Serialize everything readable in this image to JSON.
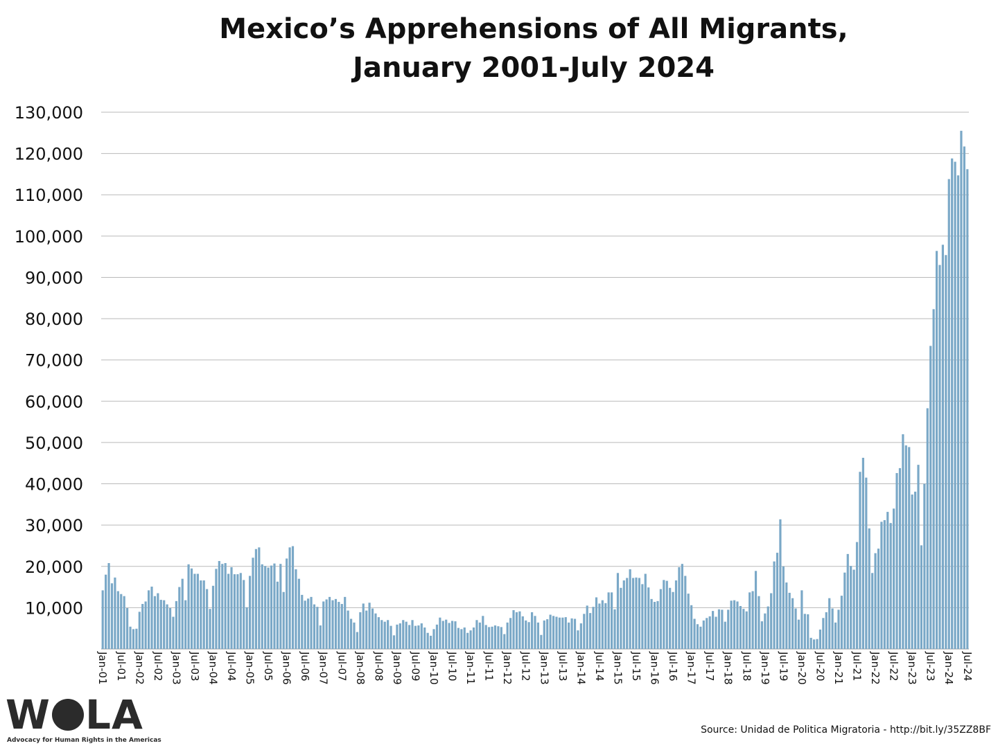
{
  "chart_data": {
    "type": "bar",
    "title": [
      "Mexico’s Apprehensions of All Migrants,",
      "January 2001-July 2024"
    ],
    "xlabel": "",
    "ylabel": "",
    "ylim": [
      0,
      130000
    ],
    "y_ticks": [
      "10,000",
      "20,000",
      "30,000",
      "40,000",
      "50,000",
      "60,000",
      "70,000",
      "80,000",
      "90,000",
      "100,000",
      "110,000",
      "120,000",
      "130,000"
    ],
    "y_tick_values": [
      10000,
      20000,
      30000,
      40000,
      50000,
      60000,
      70000,
      80000,
      90000,
      100000,
      110000,
      120000,
      130000
    ],
    "x_tick_labels": [
      "Jan-01",
      "Jul-01",
      "Jan-02",
      "Jul-02",
      "Jan-03",
      "Jul-03",
      "Jan-04",
      "Jul-04",
      "Jan-05",
      "Jul-05",
      "Jan-06",
      "Jul-06",
      "Jan-07",
      "Jul-07",
      "Jan-08",
      "Jul-08",
      "Jan-09",
      "Jul-09",
      "Jan-10",
      "Jul-10",
      "Jan-11",
      "Jul-11",
      "Jan-12",
      "Jul-12",
      "Jan-13",
      "Jul-13",
      "Jan-14",
      "Jul-14",
      "Jan-15",
      "Jul-15",
      "Jan-16",
      "Jul-16",
      "Jan-17",
      "Jul-17",
      "Jan-18",
      "Jul-18",
      "Jan-19",
      "Jul-19",
      "Jan-20",
      "Jul-20",
      "Jan-21",
      "Jul-21",
      "Jan-22",
      "Jul-22",
      "Jan-23",
      "Jul-23",
      "Jan-24",
      "Jul-24"
    ],
    "bar_color": "#7aa8c7",
    "grid": true,
    "legend": "none",
    "series": [
      {
        "values": [
          14200,
          18000,
          20800,
          15900,
          17300,
          14000,
          13300,
          12800,
          9900,
          5400,
          4800,
          4900,
          9000,
          10900,
          11500,
          14200,
          15100,
          12800,
          13500,
          11900,
          11800,
          10800,
          9900,
          7800,
          11600,
          15000,
          17000,
          11800,
          20500,
          19500,
          18200,
          18200,
          16600,
          16600,
          14500,
          9700,
          15300,
          19400,
          21300,
          20600,
          20800,
          18200,
          19800,
          18100,
          18100,
          18400,
          16700,
          10100,
          17700,
          22100,
          24200,
          24600,
          20500,
          20100,
          19700,
          20200,
          20700,
          16300,
          20600,
          13800,
          21900,
          24600,
          24900,
          19300,
          17000,
          13100,
          11700,
          12200,
          12600,
          10800,
          10200,
          5700,
          11500,
          12000,
          12600,
          11800,
          12100,
          11400,
          10900,
          12600,
          9300,
          7300,
          6400,
          4100,
          8900,
          11000,
          9300,
          11200,
          9800,
          8600,
          7700,
          7000,
          6600,
          7000,
          5600,
          3300,
          5900,
          6200,
          7000,
          6600,
          5800,
          7000,
          5600,
          5700,
          6200,
          5200,
          3900,
          3200,
          4800,
          5900,
          7600,
          6800,
          7100,
          6300,
          6800,
          6700,
          5100,
          4800,
          5200,
          3900,
          4500,
          5200,
          7000,
          6400,
          8000,
          5800,
          5300,
          5400,
          5700,
          5500,
          5300,
          3600,
          6400,
          7500,
          9400,
          8900,
          9100,
          7900,
          6900,
          6500,
          8900,
          8000,
          6400,
          3400,
          6900,
          7200,
          8300,
          8000,
          7800,
          7600,
          7600,
          7700,
          6400,
          7400,
          7300,
          4500,
          6200,
          8500,
          10500,
          8700,
          10200,
          12500,
          11000,
          11800,
          11100,
          13700,
          13700,
          9600,
          18400,
          14800,
          16600,
          17200,
          19300,
          17200,
          17300,
          17200,
          15700,
          18200,
          14900,
          12100,
          11400,
          11600,
          14500,
          16700,
          16500,
          14800,
          13800,
          16600,
          19800,
          20600,
          17700,
          13400,
          10600,
          7300,
          6000,
          5400,
          6900,
          7500,
          7900,
          9200,
          7800,
          9600,
          9500,
          6600,
          9500,
          11700,
          11800,
          11500,
          10400,
          9700,
          9100,
          13700,
          14000,
          18900,
          12800,
          6700,
          8600,
          10300,
          13500,
          21200,
          23300,
          31400,
          20000,
          16100,
          13600,
          12300,
          9800,
          7100,
          14200,
          8500,
          8400,
          2700,
          2300,
          2400,
          4700,
          7500,
          8900,
          12300,
          9800,
          6400,
          9500,
          12900,
          18500,
          23000,
          20100,
          19200,
          25900,
          42900,
          46300,
          41500,
          29200,
          18400,
          23200,
          24300,
          30800,
          31200,
          33200,
          30500,
          34000,
          42600,
          43800,
          52000,
          49300,
          48900,
          37400,
          38100,
          44600,
          25100,
          40000,
          58300,
          73400,
          82300,
          96400,
          93000,
          97900,
          95400,
          113800,
          118800,
          118000,
          114700,
          125500,
          121700,
          116200
        ]
      }
    ]
  },
  "source_text": "Source: Unidad de Politica Migratoria - http://bit.ly/35ZZ8BF",
  "logo": {
    "name": "WOLA",
    "tagline": "Advocacy for Human Rights in the Americas"
  }
}
